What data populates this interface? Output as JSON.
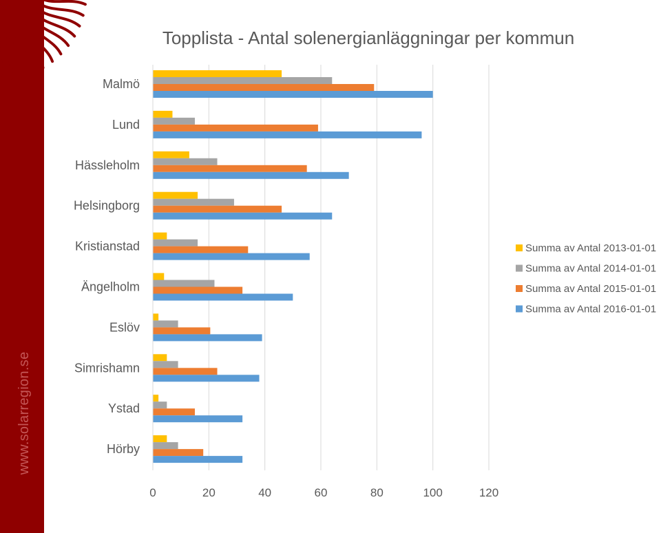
{
  "sidebar": {
    "url": "www.solarregion.se"
  },
  "colors": {
    "sidebar": "#8f0000",
    "rays": "#8f0000",
    "text": "#595959",
    "grid": "#d9d9d9"
  },
  "chart_data": {
    "type": "bar",
    "orientation": "horizontal",
    "title": "Topplista - Antal solenergianläggningar per kommun",
    "xlabel": "",
    "ylabel": "",
    "xlim": [
      0,
      120
    ],
    "xticks": [
      0,
      20,
      40,
      60,
      80,
      100,
      120
    ],
    "grid": true,
    "legend_position": "right",
    "categories": [
      "Malmö",
      "Lund",
      "Hässleholm",
      "Helsingborg",
      "Kristianstad",
      "Ängelholm",
      "Eslöv",
      "Simrishamn",
      "Ystad",
      "Hörby"
    ],
    "series": [
      {
        "name": "Summa av Antal 2013-01-01",
        "color": "#ffc000",
        "values": [
          46,
          7,
          13,
          16,
          5,
          4,
          2,
          5,
          2,
          5
        ]
      },
      {
        "name": "Summa av Antal 2014-01-01",
        "color": "#a5a5a5",
        "values": [
          64,
          15,
          23,
          29,
          16,
          22,
          9,
          9,
          5,
          9
        ]
      },
      {
        "name": "Summa av Antal 2015-01-01",
        "color": "#ed7d31",
        "values": [
          79,
          59,
          55,
          46,
          34,
          32,
          20.5,
          23,
          15,
          18
        ]
      },
      {
        "name": "Summa av Antal 2016-01-01",
        "color": "#5b9bd5",
        "values": [
          100,
          96,
          70,
          64,
          56,
          50,
          39,
          38,
          32,
          32
        ]
      }
    ]
  }
}
